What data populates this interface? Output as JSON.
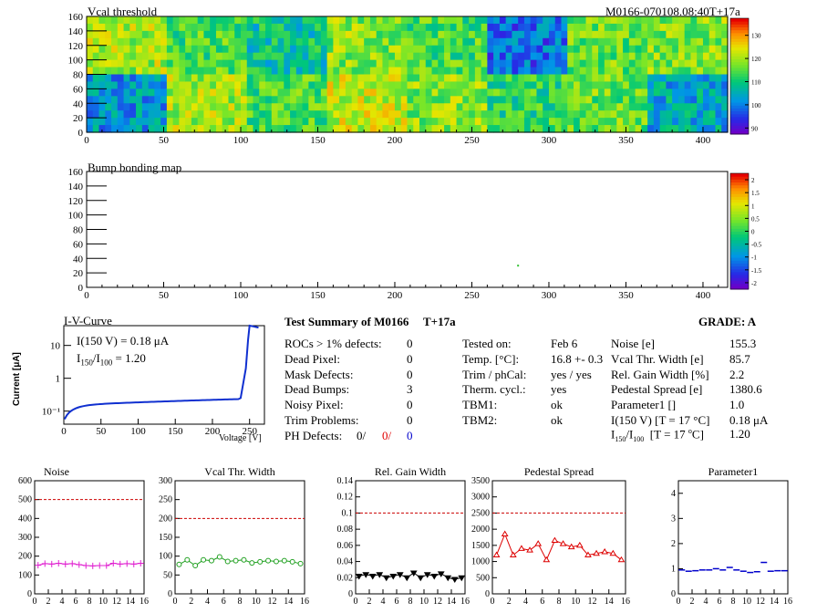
{
  "vcal_map": {
    "title": "Vcal threshold",
    "module": "M0166-070108.08:40T+17a",
    "x_ticks": [
      "0",
      "50",
      "100",
      "150",
      "200",
      "250",
      "300",
      "350",
      "400"
    ],
    "y_ticks": [
      "0",
      "20",
      "40",
      "60",
      "80",
      "100",
      "120",
      "140",
      "160"
    ],
    "scale_ticks": [
      "130",
      "120",
      "110",
      "100",
      "90"
    ],
    "roc_means_top": [
      118,
      112,
      106,
      116,
      112,
      96,
      114,
      116
    ],
    "roc_means_bottom": [
      100,
      118,
      112,
      120,
      116,
      110,
      114,
      102
    ]
  },
  "bump_map": {
    "title": "Bump bonding map",
    "x_ticks": [
      "0",
      "50",
      "100",
      "150",
      "200",
      "250",
      "300",
      "350",
      "400"
    ],
    "y_ticks": [
      "0",
      "20",
      "40",
      "60",
      "80",
      "100",
      "120",
      "140",
      "160"
    ],
    "scale_ticks": [
      "2",
      "1.5",
      "1",
      "0.5",
      "0",
      "-0.5",
      "-1",
      "-1.5",
      "-2"
    ]
  },
  "iv": {
    "title": "I-V-Curve",
    "ylabel": "Current [μA]",
    "xlabel": "Voltage [V]",
    "x_ticks": [
      "0",
      "50",
      "100",
      "150",
      "200",
      "250"
    ],
    "y_ticks": [
      "10",
      "1",
      "10⁻¹"
    ],
    "i150": "I(150 V) = 0.18 μA",
    "ratio_label": "I",
    "ratio_sub1": "150",
    "ratio_slash": "/I",
    "ratio_sub2": "100",
    "ratio_value": "=  1.20"
  },
  "summary": {
    "title": "Test Summary of M0166",
    "tag": "T+17a",
    "grade": "GRADE:  A",
    "defects": [
      {
        "label": "ROCs > 1% defects:",
        "value": "0"
      },
      {
        "label": "Dead Pixel:",
        "value": "0"
      },
      {
        "label": "Mask Defects:",
        "value": "0"
      },
      {
        "label": "Dead Bumps:",
        "value": "3"
      },
      {
        "label": "Noisy Pixel:",
        "value": "0"
      },
      {
        "label": "Trim Problems:",
        "value": "0"
      }
    ],
    "ph_label": "PH Defects:",
    "ph_values": [
      "0/",
      "0/",
      "0"
    ],
    "conditions": [
      {
        "label": "Tested on:",
        "value": "Feb 6"
      },
      {
        "label": "Temp. [°C]:",
        "value": "16.8 +- 0.3"
      },
      {
        "label": "Trim / phCal:",
        "value": "yes / yes"
      },
      {
        "label": "Therm. cycl.:",
        "value": "yes"
      },
      {
        "label": "TBM1:",
        "value": "ok"
      },
      {
        "label": "TBM2:",
        "value": "ok"
      }
    ],
    "results": [
      {
        "label": "Noise [e]",
        "value": "155.3"
      },
      {
        "label": "Vcal Thr. Width [e]",
        "value": "85.7"
      },
      {
        "label": "Rel. Gain Width [%]",
        "value": "2.2"
      },
      {
        "label": "Pedestal Spread [e]",
        "value": "1380.6"
      },
      {
        "label": "Parameter1 []",
        "value": "1.0"
      },
      {
        "label": "I(150 V) [T = 17 °C]",
        "value": "0.18 μA"
      }
    ],
    "ratio_row": {
      "label": "I150/I100  [T = 17 °C]",
      "value": "1.20"
    }
  },
  "chart_data": [
    {
      "type": "line",
      "title": "Noise",
      "x": [
        0,
        1,
        2,
        3,
        4,
        5,
        6,
        7,
        8,
        9,
        10,
        11,
        12,
        13,
        14,
        15
      ],
      "values": [
        152,
        160,
        158,
        162,
        158,
        160,
        155,
        150,
        148,
        150,
        150,
        162,
        158,
        160,
        158,
        162
      ],
      "ylim": [
        0,
        600
      ],
      "y_ticks": [
        "0",
        "100",
        "200",
        "300",
        "400",
        "500",
        "600"
      ],
      "limit": 500,
      "color": "#e020d0",
      "marker": "plus"
    },
    {
      "type": "line",
      "title": "Vcal Thr. Width",
      "x": [
        0,
        1,
        2,
        3,
        4,
        5,
        6,
        7,
        8,
        9,
        10,
        11,
        12,
        13,
        14,
        15
      ],
      "values": [
        78,
        90,
        75,
        90,
        88,
        98,
        86,
        88,
        90,
        82,
        85,
        88,
        86,
        88,
        85,
        80
      ],
      "ylim": [
        0,
        300
      ],
      "y_ticks": [
        "0",
        "50",
        "100",
        "150",
        "200",
        "250",
        "300"
      ],
      "limit": 200,
      "color": "#20a020",
      "marker": "circle"
    },
    {
      "type": "line",
      "title": "Rel. Gain Width",
      "x": [
        0,
        1,
        2,
        3,
        4,
        5,
        6,
        7,
        8,
        9,
        10,
        11,
        12,
        13,
        14,
        15
      ],
      "values": [
        0.022,
        0.024,
        0.022,
        0.024,
        0.02,
        0.022,
        0.024,
        0.02,
        0.026,
        0.02,
        0.024,
        0.022,
        0.025,
        0.02,
        0.018,
        0.02
      ],
      "ylim": [
        0,
        0.14
      ],
      "y_ticks": [
        "0",
        "0.02",
        "0.04",
        "0.06",
        "0.08",
        "0.1",
        "0.12",
        "0.14"
      ],
      "limit": 0.1,
      "color": "#000000",
      "marker": "triangle-down"
    },
    {
      "type": "line",
      "title": "Pedestal Spread",
      "x": [
        0,
        1,
        2,
        3,
        4,
        5,
        6,
        7,
        8,
        9,
        10,
        11,
        12,
        13,
        14,
        15
      ],
      "values": [
        1200,
        1850,
        1200,
        1400,
        1350,
        1550,
        1050,
        1650,
        1550,
        1450,
        1500,
        1200,
        1250,
        1300,
        1250,
        1050
      ],
      "ylim": [
        0,
        3500
      ],
      "y_ticks": [
        "0",
        "500",
        "1000",
        "1500",
        "2000",
        "2500",
        "3000",
        "3500"
      ],
      "limit": 2500,
      "color": "#dd0000",
      "marker": "triangle-up"
    },
    {
      "type": "scatter",
      "title": "Parameter1",
      "x": [
        0,
        1,
        2,
        3,
        4,
        5,
        6,
        7,
        8,
        9,
        10,
        11,
        12,
        13,
        14,
        15
      ],
      "values": [
        0.95,
        0.9,
        0.92,
        0.95,
        0.95,
        1.0,
        0.95,
        1.05,
        0.95,
        0.9,
        0.85,
        0.88,
        1.25,
        0.9,
        0.92,
        0.92
      ],
      "ylim": [
        0,
        4.5
      ],
      "y_ticks": [
        "0",
        "1",
        "2",
        "3",
        "4"
      ],
      "color": "#0000cc",
      "marker": "cross"
    }
  ],
  "small_x_ticks": [
    "0",
    "2",
    "4",
    "6",
    "8",
    "10",
    "12",
    "14",
    "16"
  ]
}
